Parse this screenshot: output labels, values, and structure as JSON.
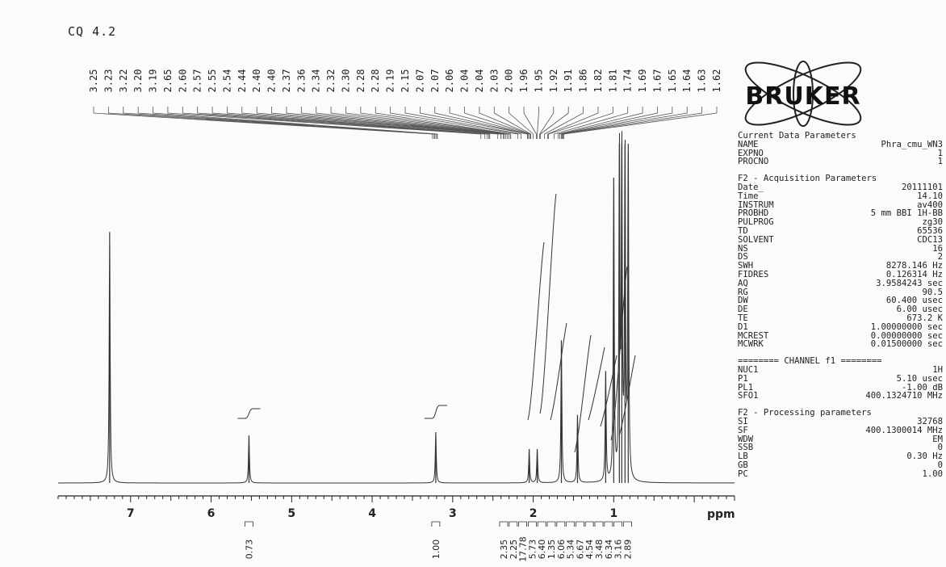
{
  "sample_label": "CQ 4.2",
  "logo_text": "BRUKER",
  "chart_data": {
    "type": "line",
    "x_unit": "ppm",
    "xlim": [
      7.9,
      -0.5
    ],
    "x_ticks": [
      7,
      6,
      5,
      4,
      3,
      2,
      1
    ],
    "peak_labels": [
      "3.25",
      "3.23",
      "3.22",
      "3.20",
      "3.19",
      "2.65",
      "2.60",
      "2.57",
      "2.55",
      "2.54",
      "2.44",
      "2.40",
      "2.40",
      "2.37",
      "2.36",
      "2.34",
      "2.32",
      "2.30",
      "2.28",
      "2.28",
      "2.19",
      "2.15",
      "2.07",
      "2.07",
      "2.06",
      "2.04",
      "2.04",
      "2.03",
      "2.00",
      "1.96",
      "1.95",
      "1.92",
      "1.91",
      "1.86",
      "1.82",
      "1.81",
      "1.74",
      "1.69",
      "1.67",
      "1.65",
      "1.64",
      "1.63",
      "1.62"
    ],
    "peaks": [
      {
        "ppm": 7.26,
        "intensity": 0.74
      },
      {
        "ppm": 5.53,
        "intensity": 0.14
      },
      {
        "ppm": 3.21,
        "intensity": 0.15
      },
      {
        "ppm": 2.05,
        "intensity": 0.1
      },
      {
        "ppm": 1.95,
        "intensity": 0.1
      },
      {
        "ppm": 1.65,
        "intensity": 0.42
      },
      {
        "ppm": 1.45,
        "intensity": 0.2
      },
      {
        "ppm": 1.1,
        "intensity": 0.33
      },
      {
        "ppm": 1.0,
        "intensity": 0.9
      },
      {
        "ppm": 0.93,
        "intensity": 1.0
      },
      {
        "ppm": 0.9,
        "intensity": 1.0
      },
      {
        "ppm": 0.86,
        "intensity": 1.0
      },
      {
        "ppm": 0.82,
        "intensity": 1.0
      }
    ],
    "integrals": [
      {
        "ppm": 5.53,
        "value": "0.73"
      },
      {
        "ppm": 3.21,
        "value": "1.00"
      },
      {
        "ppm": 2.12,
        "value": "2.35"
      },
      {
        "ppm": 2.01,
        "value": "2.25"
      },
      {
        "ppm": 1.9,
        "value": "17.78"
      },
      {
        "ppm": 1.79,
        "value": "5.73"
      },
      {
        "ppm": 1.68,
        "value": "6.40"
      },
      {
        "ppm": 1.58,
        "value": "1.35"
      },
      {
        "ppm": 1.47,
        "value": "6.06"
      },
      {
        "ppm": 1.36,
        "value": "5.34"
      },
      {
        "ppm": 1.25,
        "value": "6.67"
      },
      {
        "ppm": 1.14,
        "value": "4.54"
      },
      {
        "ppm": 1.03,
        "value": "3.48"
      },
      {
        "ppm": 0.92,
        "value": "6.34"
      },
      {
        "ppm": 0.81,
        "value": "3.16"
      },
      {
        "ppm": 0.7,
        "value": "2.89"
      }
    ]
  },
  "parameters": {
    "current": {
      "header": "Current Data Parameters",
      "rows": [
        [
          "NAME",
          "Phra_cmu_WN3"
        ],
        [
          "EXPNO",
          "1"
        ],
        [
          "PROCNO",
          "1"
        ]
      ]
    },
    "acquisition": {
      "header": "F2 - Acquisition Parameters",
      "rows": [
        [
          "Date_",
          "20111101"
        ],
        [
          "Time",
          "14.10"
        ],
        [
          "INSTRUM",
          "av400"
        ],
        [
          "PROBHD",
          "5 mm BBI 1H-BB"
        ],
        [
          "PULPROG",
          "zg30"
        ],
        [
          "TD",
          "65536"
        ],
        [
          "SOLVENT",
          "CDC13"
        ],
        [
          "NS",
          "16"
        ],
        [
          "DS",
          "2"
        ],
        [
          "SWH",
          "8278.146 Hz"
        ],
        [
          "FIDRES",
          "0.126314 Hz"
        ],
        [
          "AQ",
          "3.9584243 sec"
        ],
        [
          "RG",
          "90.5"
        ],
        [
          "DW",
          "60.400 usec"
        ],
        [
          "DE",
          "6.00 usec"
        ],
        [
          "TE",
          "673.2 K"
        ],
        [
          "D1",
          "1.00000000 sec"
        ],
        [
          "MCREST",
          "0.00000000 sec"
        ],
        [
          "MCWRK",
          "0.01500000 sec"
        ]
      ]
    },
    "channel": {
      "header": "======== CHANNEL f1 ========",
      "rows": [
        [
          "NUC1",
          "1H"
        ],
        [
          "P1",
          "5.10 usec"
        ],
        [
          "PL1",
          "-1.00 dB"
        ],
        [
          "SFO1",
          "400.1324710 MHz"
        ]
      ]
    },
    "processing": {
      "header": "F2 - Processing parameters",
      "rows": [
        [
          "SI",
          "32768"
        ],
        [
          "SF",
          "400.1300014 MHz"
        ],
        [
          "WDW",
          "EM"
        ],
        [
          "SSB",
          "0"
        ],
        [
          "LB",
          "0.30 Hz"
        ],
        [
          "GB",
          "0"
        ],
        [
          "PC",
          "1.00"
        ]
      ]
    }
  }
}
